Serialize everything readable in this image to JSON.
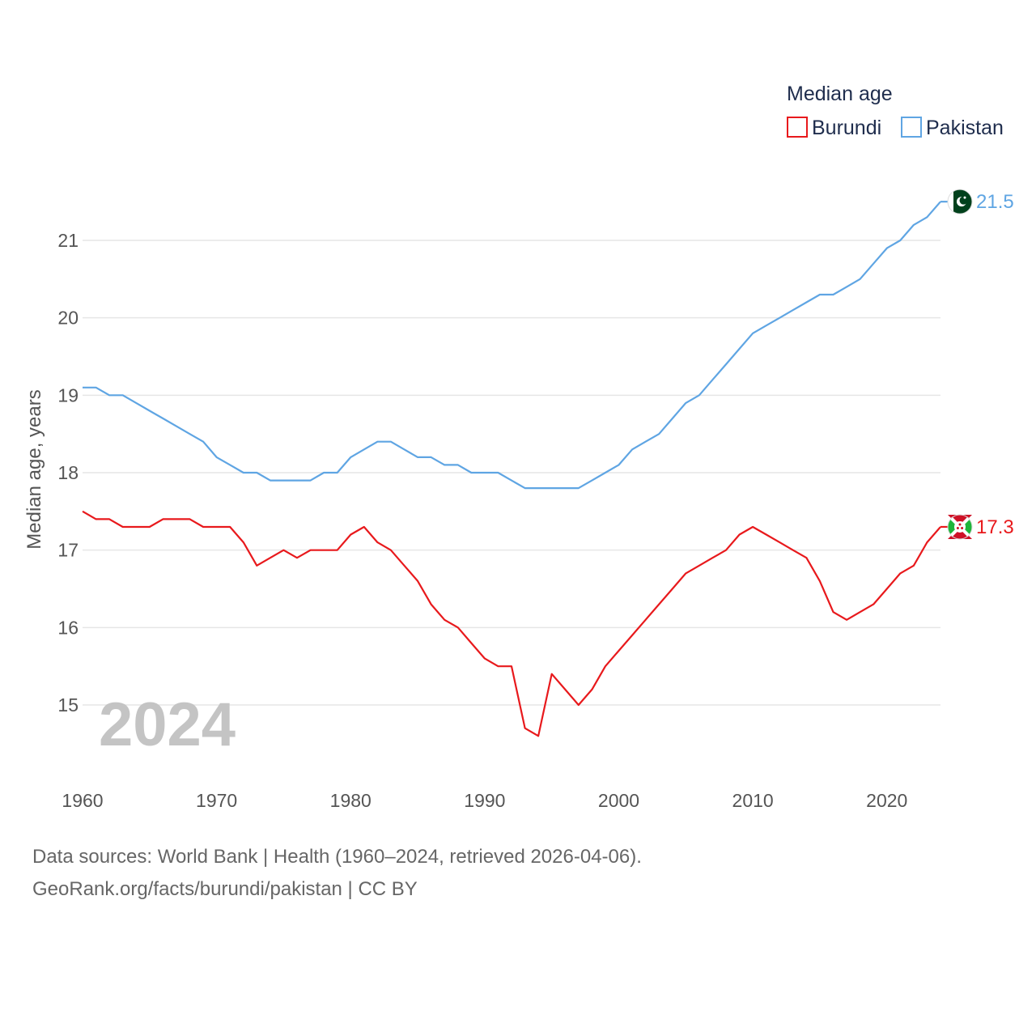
{
  "chart_data": {
    "type": "line",
    "legend_title": "Median age",
    "legend_position": "top-right",
    "ylabel": "Median age, years",
    "xlabel": "",
    "xlim": [
      1960,
      2024
    ],
    "ylim": [
      14.2,
      22
    ],
    "x_ticks": [
      1960,
      1970,
      1980,
      1990,
      2000,
      2010,
      2020
    ],
    "y_ticks": [
      15,
      16,
      17,
      18,
      19,
      20,
      21
    ],
    "grid": true,
    "year_overlay": "2024",
    "x": [
      1960,
      1961,
      1962,
      1963,
      1964,
      1965,
      1966,
      1967,
      1968,
      1969,
      1970,
      1971,
      1972,
      1973,
      1974,
      1975,
      1976,
      1977,
      1978,
      1979,
      1980,
      1981,
      1982,
      1983,
      1984,
      1985,
      1986,
      1987,
      1988,
      1989,
      1990,
      1991,
      1992,
      1993,
      1994,
      1995,
      1996,
      1997,
      1998,
      1999,
      2000,
      2001,
      2002,
      2003,
      2004,
      2005,
      2006,
      2007,
      2008,
      2009,
      2010,
      2011,
      2012,
      2013,
      2014,
      2015,
      2016,
      2017,
      2018,
      2019,
      2020,
      2021,
      2022,
      2023,
      2024
    ],
    "series": [
      {
        "name": "Burundi",
        "color": "#e8191c",
        "end_label": "17.3",
        "flag_icon": "burundi-flag-icon",
        "values": [
          17.5,
          17.4,
          17.4,
          17.3,
          17.3,
          17.3,
          17.4,
          17.4,
          17.4,
          17.3,
          17.3,
          17.3,
          17.1,
          16.8,
          16.9,
          17.0,
          16.9,
          17.0,
          17.0,
          17.0,
          17.2,
          17.3,
          17.1,
          17.0,
          16.8,
          16.6,
          16.3,
          16.1,
          16.0,
          15.8,
          15.6,
          15.5,
          15.5,
          14.7,
          14.6,
          15.4,
          15.2,
          15.0,
          15.2,
          15.5,
          15.7,
          15.9,
          16.1,
          16.3,
          16.5,
          16.7,
          16.8,
          16.9,
          17.0,
          17.2,
          17.3,
          17.2,
          17.1,
          17.0,
          16.9,
          16.6,
          16.2,
          16.1,
          16.2,
          16.3,
          16.5,
          16.7,
          16.8,
          17.1,
          17.3
        ]
      },
      {
        "name": "Pakistan",
        "color": "#5fa5e3",
        "end_label": "21.5",
        "flag_icon": "pakistan-flag-icon",
        "values": [
          19.1,
          19.1,
          19.0,
          19.0,
          18.9,
          18.8,
          18.7,
          18.6,
          18.5,
          18.4,
          18.2,
          18.1,
          18.0,
          18.0,
          17.9,
          17.9,
          17.9,
          17.9,
          18.0,
          18.0,
          18.2,
          18.3,
          18.4,
          18.4,
          18.3,
          18.2,
          18.2,
          18.1,
          18.1,
          18.0,
          18.0,
          18.0,
          17.9,
          17.8,
          17.8,
          17.8,
          17.8,
          17.8,
          17.9,
          18.0,
          18.1,
          18.3,
          18.4,
          18.5,
          18.7,
          18.9,
          19.0,
          19.2,
          19.4,
          19.6,
          19.8,
          19.9,
          20.0,
          20.1,
          20.2,
          20.3,
          20.3,
          20.4,
          20.5,
          20.7,
          20.9,
          21.0,
          21.2,
          21.3,
          21.5
        ]
      }
    ]
  },
  "footer": {
    "source_line": "Data sources: World Bank | Health (1960–2024, retrieved 2026-04-06).",
    "credit_line": "GeoRank.org/facts/burundi/pakistan | CC BY"
  }
}
